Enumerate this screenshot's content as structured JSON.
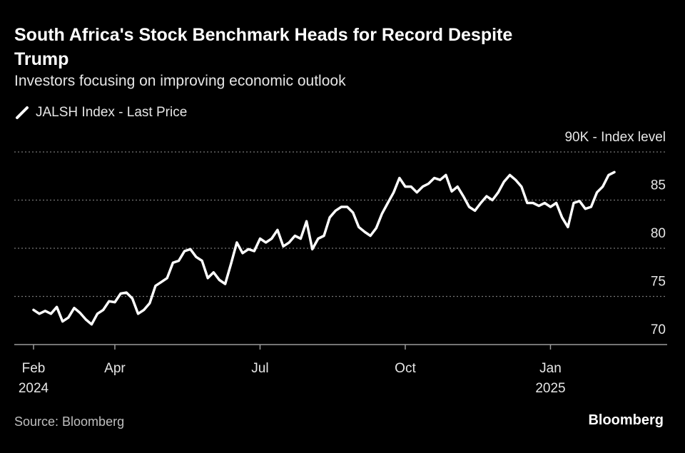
{
  "chart_data": {
    "type": "line",
    "title": "South Africa's Stock Benchmark Heads for Record Despite Trump",
    "subtitle": "Investors focusing on improving economic outlook",
    "source": "Source: Bloomberg",
    "brand": "Bloomberg",
    "categories": [
      "Feb",
      null,
      null,
      null,
      null,
      null,
      null,
      null,
      null,
      null,
      null,
      null,
      null,
      null,
      "Apr",
      null,
      null,
      null,
      null,
      null,
      null,
      null,
      null,
      null,
      null,
      null,
      null,
      null,
      null,
      null,
      null,
      null,
      null,
      null,
      null,
      null,
      null,
      null,
      null,
      "Jul",
      null,
      null,
      null,
      null,
      null,
      null,
      null,
      null,
      null,
      null,
      null,
      null,
      null,
      null,
      null,
      null,
      null,
      null,
      null,
      null,
      null,
      null,
      null,
      null,
      "Oct",
      null,
      null,
      null,
      null,
      null,
      null,
      null,
      null,
      null,
      null,
      null,
      null,
      null,
      null,
      null,
      null,
      null,
      null,
      null,
      null,
      null,
      null,
      null,
      null,
      "Jan",
      null,
      null,
      null,
      null,
      null,
      null,
      null,
      null,
      null,
      null,
      null
    ],
    "category_years": [
      {
        "index": 0,
        "label": "2024"
      },
      {
        "index": 89,
        "label": "2025"
      }
    ],
    "series": [
      {
        "name": "JALSH Index - Last Price",
        "color": "#ffffff",
        "values": [
          73.6,
          73.2,
          73.5,
          73.2,
          73.9,
          72.4,
          72.8,
          73.8,
          73.3,
          72.6,
          72.1,
          73.2,
          73.6,
          74.5,
          74.4,
          75.3,
          75.4,
          74.8,
          73.2,
          73.6,
          74.3,
          76.1,
          76.5,
          76.9,
          78.5,
          78.7,
          79.7,
          79.9,
          79.1,
          78.7,
          76.9,
          77.5,
          76.7,
          76.3,
          78.4,
          80.6,
          79.5,
          79.9,
          79.7,
          81.0,
          80.6,
          81.0,
          81.9,
          80.2,
          80.6,
          81.3,
          81.0,
          82.8,
          79.9,
          81.0,
          81.3,
          83.2,
          83.9,
          84.3,
          84.3,
          83.7,
          82.2,
          81.7,
          81.3,
          82.1,
          83.6,
          84.7,
          85.8,
          87.3,
          86.4,
          86.4,
          85.8,
          86.4,
          86.7,
          87.3,
          87.1,
          87.6,
          85.9,
          86.4,
          85.4,
          84.3,
          83.9,
          84.7,
          85.4,
          85.0,
          85.8,
          86.9,
          87.6,
          87.1,
          86.4,
          84.7,
          84.7,
          84.4,
          84.7,
          84.3,
          84.7,
          83.2,
          82.2,
          84.7,
          84.9,
          84.1,
          84.3,
          85.8,
          86.4,
          87.6,
          87.9
        ]
      }
    ],
    "ylim": [
      70,
      90
    ],
    "yticks": [
      70,
      75,
      80,
      85,
      {
        "value": 90,
        "label": "90K - Index level"
      }
    ],
    "grid": true
  }
}
